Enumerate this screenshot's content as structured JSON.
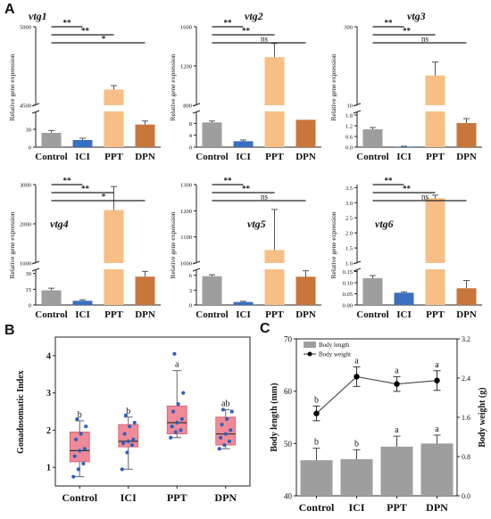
{
  "panels": {
    "A": "A",
    "B": "B",
    "C": "C"
  },
  "colors": {
    "control": "#9e9e9e",
    "ici": "#3a6fc1",
    "ppt": "#f7bf86",
    "dpn": "#c8763c",
    "box": "#f08a96",
    "dot": "#2e5fbf",
    "c_bar": "#9e9e9e"
  },
  "chart_data": [
    {
      "type": "bar",
      "title": "vtg1",
      "ylabel": "Relative gene expression",
      "categories": [
        "Control",
        "ICI",
        "PPT",
        "DPN"
      ],
      "values": [
        24,
        12,
        4600,
        38
      ],
      "errors": [
        4,
        3,
        25,
        6
      ],
      "ylim_lower": [
        0,
        60
      ],
      "ylim_upper": [
        4500,
        5000
      ],
      "ticks_lower": [
        "0",
        "30"
      ],
      "ticks_upper": [
        "4500",
        "5000"
      ],
      "significance": [
        "**",
        "**",
        "*"
      ]
    },
    {
      "type": "bar",
      "title": "vtg2",
      "ylabel": "Relative gene expression",
      "categories": [
        "Control",
        "ICI",
        "PPT",
        "DPN"
      ],
      "values": [
        8.3,
        2,
        1290,
        9.2
      ],
      "errors": [
        0.5,
        0.4,
        140,
        0
      ],
      "ylim_lower": [
        0,
        12
      ],
      "ylim_upper": [
        800,
        1600
      ],
      "ticks_lower": [
        "0",
        "4",
        "8"
      ],
      "ticks_upper": [
        "800",
        "1200",
        "1600"
      ],
      "significance": [
        "**",
        "**",
        "ns"
      ]
    },
    {
      "type": "bar",
      "title": "vtg3",
      "ylabel": "Relative gene expression",
      "categories": [
        "Control",
        "ICI",
        "PPT",
        "DPN"
      ],
      "values": [
        1,
        0.03,
        120,
        1.35
      ],
      "errors": [
        0.1,
        0.02,
        50,
        0.25
      ],
      "ylim_lower": [
        0,
        2.0
      ],
      "ylim_upper": [
        10,
        300
      ],
      "ticks_lower": [
        "0.0",
        "0.6",
        "1.2",
        "1.8"
      ],
      "ticks_upper": [
        "10",
        "300"
      ],
      "significance": [
        "**",
        "**",
        "ns"
      ]
    },
    {
      "type": "bar",
      "title": "vtg4",
      "ylabel": "Relative gene expression",
      "categories": [
        "Control",
        "ICI",
        "PPT",
        "DPN"
      ],
      "values": [
        14,
        4,
        2350,
        27
      ],
      "errors": [
        2,
        1,
        600,
        5
      ],
      "ylim_lower": [
        0,
        34
      ],
      "ylim_upper": [
        1000,
        3000
      ],
      "ticks_lower": [
        "0",
        "15",
        "30"
      ],
      "ticks_upper": [
        "1000",
        "2000",
        "3000"
      ],
      "significance": [
        "**",
        "**",
        "*"
      ]
    },
    {
      "type": "bar",
      "title": "vtg5",
      "ylabel": "Relative gene expression",
      "categories": [
        "Control",
        "ICI",
        "PPT",
        "DPN"
      ],
      "values": [
        5.8,
        0.6,
        1050,
        5.7
      ],
      "errors": [
        0.3,
        0.15,
        155,
        1.2
      ],
      "ylim_lower": [
        0,
        7.2
      ],
      "ylim_upper": [
        1000,
        1300
      ],
      "ticks_lower": [
        "0",
        "3",
        "6"
      ],
      "ticks_upper": [
        "1000",
        "1100",
        "1200",
        "1300"
      ],
      "significance": [
        "**",
        "**",
        "ns"
      ]
    },
    {
      "type": "bar",
      "title": "vtg6",
      "ylabel": "Relative gene expression",
      "categories": [
        "Control",
        "ICI",
        "PPT",
        "DPN"
      ],
      "values": [
        0.12,
        0.055,
        3.15,
        0.075
      ],
      "errors": [
        0.012,
        0.004,
        0.1,
        0.035
      ],
      "ylim_lower": [
        0,
        0.16
      ],
      "ylim_upper": [
        1.0,
        3.6
      ],
      "ticks_lower": [
        "0.00",
        "0.05",
        "0.10",
        "0.15"
      ],
      "ticks_upper": [
        "1.0",
        "1.5",
        "2.0",
        "2.5",
        "3.0",
        "3.5"
      ],
      "significance": [
        "**",
        "**",
        "ns"
      ]
    },
    {
      "type": "box",
      "ylabel": "Gonadosomatic Index",
      "categories": [
        "Control",
        "ICI",
        "PPT",
        "DPN"
      ],
      "ylim": [
        0.5,
        4.5
      ],
      "ticks": [
        "1",
        "2",
        "3",
        "4"
      ],
      "q1": [
        1.15,
        1.55,
        1.9,
        1.6
      ],
      "median": [
        1.45,
        1.7,
        2.2,
        1.9
      ],
      "q3": [
        1.95,
        2.15,
        2.65,
        2.35
      ],
      "whisker_low": [
        0.75,
        0.95,
        1.8,
        1.5
      ],
      "whisker_high": [
        2.25,
        2.35,
        3.6,
        2.55
      ],
      "points": [
        [
          0.75,
          0.95,
          1.1,
          1.3,
          1.45,
          1.5,
          1.75,
          1.9,
          2.1,
          2.3
        ],
        [
          0.95,
          1.4,
          1.6,
          1.65,
          1.7,
          1.75,
          1.9,
          2.1,
          2.2,
          2.4
        ],
        [
          1.8,
          1.95,
          2.0,
          2.1,
          2.2,
          2.3,
          2.5,
          2.7,
          3.0,
          4.05
        ],
        [
          1.5,
          1.6,
          1.7,
          1.8,
          1.9,
          2.0,
          2.15,
          2.3,
          2.5,
          2.55
        ]
      ],
      "letters": [
        "b",
        "b",
        "a",
        "ab"
      ]
    },
    {
      "type": "bar",
      "ylabel": "Body length (mm)",
      "y2label": "Body weight (g)",
      "categories": [
        "Control",
        "ICI",
        "PPT",
        "DPN"
      ],
      "ylim": [
        40,
        70
      ],
      "y2lim": [
        0,
        3.2
      ],
      "ticks": [
        "40",
        "50",
        "60",
        "70"
      ],
      "y2ticks": [
        "0.0",
        "0.8",
        "1.6",
        "2.4",
        "3.2"
      ],
      "series": [
        {
          "name": "Body length",
          "values": [
            46.8,
            47.0,
            49.4,
            50.0
          ],
          "errors": [
            2.3,
            1.8,
            2.0,
            1.6
          ],
          "letters": [
            "b",
            "b",
            "a",
            "a"
          ]
        },
        {
          "name": "Body weight",
          "values": [
            1.68,
            2.43,
            2.28,
            2.35
          ],
          "errors": [
            0.15,
            0.2,
            0.15,
            0.2
          ],
          "letters": [
            "b",
            "a",
            "a",
            "a"
          ]
        }
      ]
    }
  ]
}
